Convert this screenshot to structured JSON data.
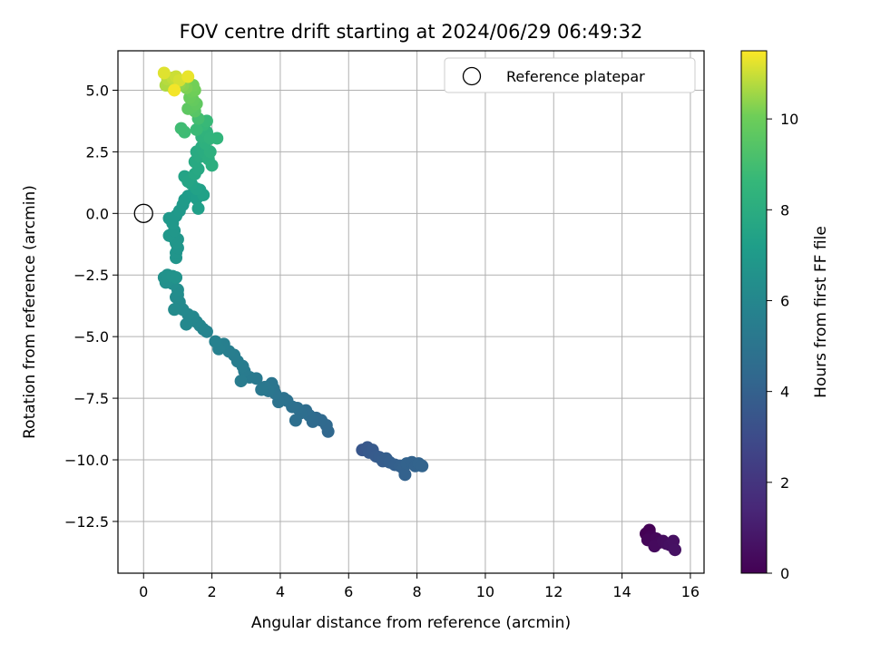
{
  "chart_data": {
    "type": "scatter",
    "title": "FOV centre drift starting at 2024/06/29 06:49:32",
    "xlabel": "Angular distance from reference (arcmin)",
    "ylabel": "Rotation from reference (arcmin)",
    "xlim": [
      -0.75,
      16.4
    ],
    "ylim": [
      -14.6,
      6.6
    ],
    "xticks": [
      0,
      2,
      4,
      6,
      8,
      10,
      12,
      14,
      16
    ],
    "yticks": [
      5.0,
      2.5,
      0.0,
      -2.5,
      -5.0,
      -7.5,
      -10.0,
      -12.5
    ],
    "ytick_labels": [
      "5.0",
      "2.5",
      "0.0",
      "−2.5",
      "−5.0",
      "−7.5",
      "−10.0",
      "−12.5"
    ],
    "grid": true,
    "legend": {
      "placement": "top-right",
      "entries": [
        "Reference platepar"
      ]
    },
    "reference_point": {
      "x": 0.0,
      "y": 0.0,
      "marker": "open-circle"
    },
    "colorbar": {
      "label": "Hours from first FF file",
      "colormap": "viridis",
      "range": [
        0,
        11.5
      ],
      "ticks": [
        0,
        2,
        4,
        6,
        8,
        10
      ]
    },
    "series": [
      {
        "columns": [
          "x",
          "y",
          "hours"
        ],
        "points": [
          [
            14.7,
            -13.0,
            0.0
          ],
          [
            14.8,
            -12.85,
            0.05
          ],
          [
            14.85,
            -13.1,
            0.1
          ],
          [
            14.9,
            -13.3,
            0.15
          ],
          [
            14.75,
            -13.25,
            0.2
          ],
          [
            15.0,
            -13.2,
            0.25
          ],
          [
            15.1,
            -13.35,
            0.3
          ],
          [
            14.95,
            -13.5,
            0.35
          ],
          [
            15.2,
            -13.3,
            0.4
          ],
          [
            15.3,
            -13.4,
            0.45
          ],
          [
            15.4,
            -13.45,
            0.5
          ],
          [
            15.5,
            -13.3,
            0.55
          ],
          [
            15.55,
            -13.65,
            0.6
          ],
          [
            6.4,
            -9.6,
            3.5
          ],
          [
            6.55,
            -9.5,
            3.55
          ],
          [
            6.6,
            -9.7,
            3.6
          ],
          [
            6.7,
            -9.6,
            3.65
          ],
          [
            6.8,
            -9.85,
            3.7
          ],
          [
            6.9,
            -9.9,
            3.75
          ],
          [
            7.0,
            -10.05,
            3.8
          ],
          [
            7.1,
            -9.95,
            3.85
          ],
          [
            7.2,
            -10.1,
            3.9
          ],
          [
            7.35,
            -10.2,
            3.95
          ],
          [
            7.5,
            -10.25,
            4.0
          ],
          [
            7.6,
            -10.35,
            4.02
          ],
          [
            7.65,
            -10.6,
            4.04
          ],
          [
            7.7,
            -10.15,
            4.06
          ],
          [
            7.85,
            -10.1,
            4.08
          ],
          [
            7.95,
            -10.25,
            4.1
          ],
          [
            8.05,
            -10.15,
            4.12
          ],
          [
            8.15,
            -10.25,
            4.14
          ],
          [
            5.4,
            -8.85,
            4.3
          ],
          [
            5.35,
            -8.6,
            4.35
          ],
          [
            5.2,
            -8.4,
            4.4
          ],
          [
            5.05,
            -8.3,
            4.45
          ],
          [
            4.95,
            -8.45,
            4.5
          ],
          [
            4.85,
            -8.2,
            4.55
          ],
          [
            4.75,
            -8.0,
            4.6
          ],
          [
            4.6,
            -8.1,
            4.65
          ],
          [
            4.5,
            -7.9,
            4.7
          ],
          [
            4.45,
            -8.4,
            4.72
          ],
          [
            4.35,
            -7.85,
            4.75
          ],
          [
            4.2,
            -7.6,
            4.8
          ],
          [
            4.1,
            -7.5,
            4.85
          ],
          [
            3.95,
            -7.65,
            4.9
          ],
          [
            3.85,
            -7.3,
            4.95
          ],
          [
            3.8,
            -7.1,
            5.0
          ],
          [
            3.75,
            -6.9,
            5.05
          ],
          [
            3.65,
            -7.2,
            5.1
          ],
          [
            3.55,
            -7.05,
            5.15
          ],
          [
            3.45,
            -7.15,
            5.2
          ],
          [
            3.3,
            -6.7,
            5.25
          ],
          [
            3.1,
            -6.65,
            5.3
          ],
          [
            2.95,
            -6.4,
            5.35
          ],
          [
            2.9,
            -6.2,
            5.4
          ],
          [
            2.85,
            -6.8,
            5.42
          ],
          [
            2.75,
            -6.0,
            5.45
          ],
          [
            2.65,
            -5.75,
            5.5
          ],
          [
            2.5,
            -5.6,
            5.55
          ],
          [
            2.35,
            -5.3,
            5.6
          ],
          [
            2.2,
            -5.5,
            5.65
          ],
          [
            2.1,
            -5.2,
            5.7
          ],
          [
            1.85,
            -4.8,
            5.8
          ],
          [
            1.75,
            -4.7,
            5.85
          ],
          [
            1.65,
            -4.55,
            5.9
          ],
          [
            1.55,
            -4.4,
            5.95
          ],
          [
            1.45,
            -4.2,
            6.0
          ],
          [
            1.3,
            -4.1,
            6.05
          ],
          [
            1.25,
            -4.5,
            6.08
          ],
          [
            1.15,
            -3.9,
            6.1
          ],
          [
            1.05,
            -3.6,
            6.15
          ],
          [
            0.95,
            -3.4,
            6.2
          ],
          [
            0.9,
            -3.9,
            6.22
          ],
          [
            1.0,
            -3.3,
            6.25
          ],
          [
            1.0,
            -3.1,
            6.3
          ],
          [
            0.85,
            -2.85,
            6.35
          ],
          [
            0.75,
            -2.7,
            6.4
          ],
          [
            0.65,
            -2.8,
            6.45
          ],
          [
            0.6,
            -2.6,
            6.5
          ],
          [
            0.7,
            -2.5,
            6.55
          ],
          [
            0.85,
            -2.55,
            6.6
          ],
          [
            0.95,
            -2.6,
            6.62
          ],
          [
            0.95,
            -1.8,
            6.7
          ],
          [
            0.95,
            -1.6,
            6.72
          ],
          [
            1.0,
            -1.4,
            6.74
          ],
          [
            0.95,
            -1.2,
            6.76
          ],
          [
            1.0,
            -1.05,
            6.78
          ],
          [
            0.85,
            -0.95,
            6.8
          ],
          [
            0.75,
            -0.9,
            6.82
          ],
          [
            0.9,
            -0.7,
            6.84
          ],
          [
            0.85,
            -0.4,
            6.86
          ],
          [
            0.75,
            -0.2,
            6.88
          ],
          [
            0.95,
            -0.1,
            6.9
          ],
          [
            1.05,
            0.1,
            6.95
          ],
          [
            1.15,
            0.35,
            7.0
          ],
          [
            1.2,
            0.55,
            7.05
          ],
          [
            1.3,
            0.7,
            7.1
          ],
          [
            1.45,
            0.8,
            7.15
          ],
          [
            1.55,
            0.6,
            7.2
          ],
          [
            1.6,
            0.2,
            7.25
          ],
          [
            1.65,
            0.95,
            7.3
          ],
          [
            1.75,
            0.75,
            7.35
          ],
          [
            1.55,
            1.0,
            7.4
          ],
          [
            1.4,
            1.2,
            7.45
          ],
          [
            1.2,
            1.5,
            7.5
          ],
          [
            1.3,
            1.3,
            7.55
          ],
          [
            1.5,
            1.6,
            7.7
          ],
          [
            1.6,
            1.8,
            7.75
          ],
          [
            1.5,
            2.1,
            7.8
          ],
          [
            1.55,
            2.5,
            7.85
          ],
          [
            1.65,
            2.3,
            7.9
          ],
          [
            1.7,
            2.7,
            7.95
          ],
          [
            1.8,
            2.45,
            8.0
          ],
          [
            1.9,
            2.2,
            8.05
          ],
          [
            2.0,
            1.95,
            8.1
          ],
          [
            1.95,
            2.5,
            8.15
          ],
          [
            1.8,
            2.85,
            8.2
          ],
          [
            1.7,
            3.1,
            8.3
          ],
          [
            1.85,
            3.3,
            8.35
          ],
          [
            1.95,
            3.05,
            8.4
          ],
          [
            2.15,
            3.05,
            8.45
          ],
          [
            1.75,
            3.6,
            8.6
          ],
          [
            1.65,
            3.75,
            8.65
          ],
          [
            1.85,
            3.75,
            8.7
          ],
          [
            1.55,
            3.4,
            8.75
          ],
          [
            1.2,
            3.3,
            8.85
          ],
          [
            1.1,
            3.45,
            8.9
          ],
          [
            1.6,
            3.85,
            9.0
          ],
          [
            1.5,
            4.15,
            9.5
          ],
          [
            1.4,
            4.3,
            9.6
          ],
          [
            1.3,
            4.25,
            9.65
          ],
          [
            1.55,
            4.45,
            9.7
          ],
          [
            1.45,
            4.6,
            9.8
          ],
          [
            1.35,
            4.7,
            9.9
          ],
          [
            1.4,
            4.95,
            10.0
          ],
          [
            1.5,
            5.0,
            10.05
          ],
          [
            1.45,
            5.2,
            10.1
          ],
          [
            1.25,
            5.1,
            10.2
          ],
          [
            1.15,
            5.2,
            10.3
          ],
          [
            1.05,
            5.25,
            10.4
          ],
          [
            0.95,
            5.35,
            10.5
          ],
          [
            0.85,
            5.1,
            10.55
          ],
          [
            0.8,
            5.25,
            10.6
          ],
          [
            0.65,
            5.2,
            10.7
          ],
          [
            0.7,
            5.45,
            10.8
          ],
          [
            0.85,
            5.5,
            10.9
          ],
          [
            0.95,
            5.55,
            11.0
          ],
          [
            1.05,
            5.4,
            11.1
          ],
          [
            0.6,
            5.7,
            11.2
          ],
          [
            1.3,
            5.55,
            11.3
          ],
          [
            0.9,
            5.0,
            11.4
          ]
        ]
      }
    ]
  }
}
